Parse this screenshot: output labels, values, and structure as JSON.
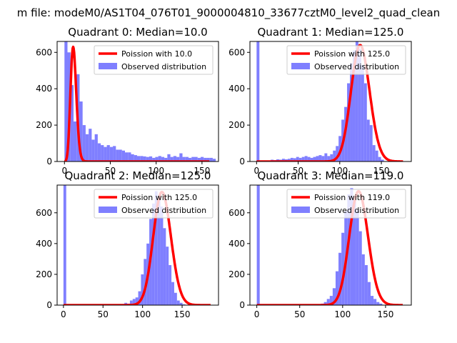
{
  "chart_data": {
    "type": "bar",
    "suptitle": "m file: modeM0/AS1T04_076T01_9000004810_33677cztM0_level2_quad_clean",
    "panels": [
      {
        "title": "Quadrant 0: Median=10.0",
        "median": 10.0,
        "xlim": [
          -8,
          168
        ],
        "ylim": [
          0,
          660
        ],
        "xticks": [
          0,
          50,
          100,
          150
        ],
        "yticks": [
          0,
          200,
          400,
          600
        ],
        "show_xtick_labels": true,
        "legend": [
          "Poission with 10.0",
          "Observed distribution"
        ],
        "poisson": {
          "mean": 10.0,
          "peak": 630
        },
        "hist": {
          "bin_start": 0,
          "bin_width": 3.3,
          "values": [
            660,
            600,
            420,
            220,
            480,
            330,
            200,
            150,
            180,
            120,
            150,
            100,
            90,
            80,
            90,
            80,
            85,
            65,
            65,
            60,
            50,
            50,
            40,
            35,
            30,
            30,
            28,
            25,
            28,
            20,
            25,
            30,
            25,
            20,
            40,
            25,
            30,
            25,
            45,
            25,
            25,
            20,
            25,
            25,
            20,
            25,
            20,
            20,
            20,
            15
          ]
        }
      },
      {
        "title": "Quadrant 1: Median=125.0",
        "median": 125.0,
        "xlim": [
          -8,
          186
        ],
        "ylim": [
          0,
          660
        ],
        "xticks": [
          0,
          50,
          100,
          150
        ],
        "yticks": [
          0,
          200,
          400,
          600
        ],
        "show_xtick_labels": true,
        "legend": [
          "Poission with 125.0",
          "Observed distribution"
        ],
        "poisson": {
          "mean": 125.0,
          "peak": 640
        },
        "hist": {
          "bin_start": 0,
          "bin_width": 3.4,
          "values": [
            660,
            0,
            0,
            0,
            5,
            10,
            8,
            12,
            10,
            15,
            12,
            15,
            20,
            18,
            25,
            20,
            25,
            30,
            25,
            20,
            25,
            30,
            35,
            30,
            45,
            30,
            40,
            60,
            85,
            140,
            230,
            300,
            430,
            540,
            610,
            660,
            620,
            530,
            430,
            230,
            200,
            90,
            60,
            25,
            10
          ]
        }
      },
      {
        "title": "Quadrant 2: Median=125.0",
        "median": 125.0,
        "xlim": [
          -8,
          196
        ],
        "ylim": [
          0,
          780
        ],
        "xticks": [
          0,
          50,
          100,
          150
        ],
        "yticks": [
          0,
          200,
          400,
          600
        ],
        "show_xtick_labels": true,
        "legend": [
          "Poission with 125.0",
          "Observed distribution"
        ],
        "poisson": {
          "mean": 125.0,
          "peak": 735
        },
        "hist": {
          "bin_start": 0,
          "bin_width": 3.5,
          "values": [
            780,
            0,
            0,
            0,
            0,
            0,
            0,
            0,
            0,
            0,
            0,
            0,
            0,
            0,
            0,
            0,
            0,
            0,
            0,
            0,
            0,
            5,
            15,
            10,
            30,
            40,
            50,
            90,
            200,
            300,
            400,
            560,
            660,
            740,
            700,
            640,
            500,
            380,
            260,
            150,
            80,
            30,
            15,
            5
          ]
        }
      },
      {
        "title": "Quadrant 3: Median=119.0",
        "median": 119.0,
        "xlim": [
          -8,
          180
        ],
        "ylim": [
          0,
          780
        ],
        "xticks": [
          0,
          50,
          100,
          150
        ],
        "yticks": [
          0,
          200,
          400,
          600
        ],
        "show_xtick_labels": true,
        "legend": [
          "Poission with 119.0",
          "Observed distribution"
        ],
        "poisson": {
          "mean": 119.0,
          "peak": 740
        },
        "hist": {
          "bin_start": 0,
          "bin_width": 3.4,
          "values": [
            780,
            0,
            0,
            0,
            0,
            0,
            0,
            0,
            0,
            0,
            0,
            0,
            0,
            0,
            0,
            0,
            0,
            0,
            0,
            0,
            0,
            5,
            10,
            20,
            40,
            60,
            110,
            220,
            340,
            470,
            610,
            720,
            760,
            700,
            620,
            480,
            330,
            260,
            150,
            60,
            40,
            20,
            10
          ]
        }
      }
    ],
    "colors": {
      "hist": "#7f7fff",
      "poisson": "#ff0000",
      "axis": "#000000"
    }
  }
}
